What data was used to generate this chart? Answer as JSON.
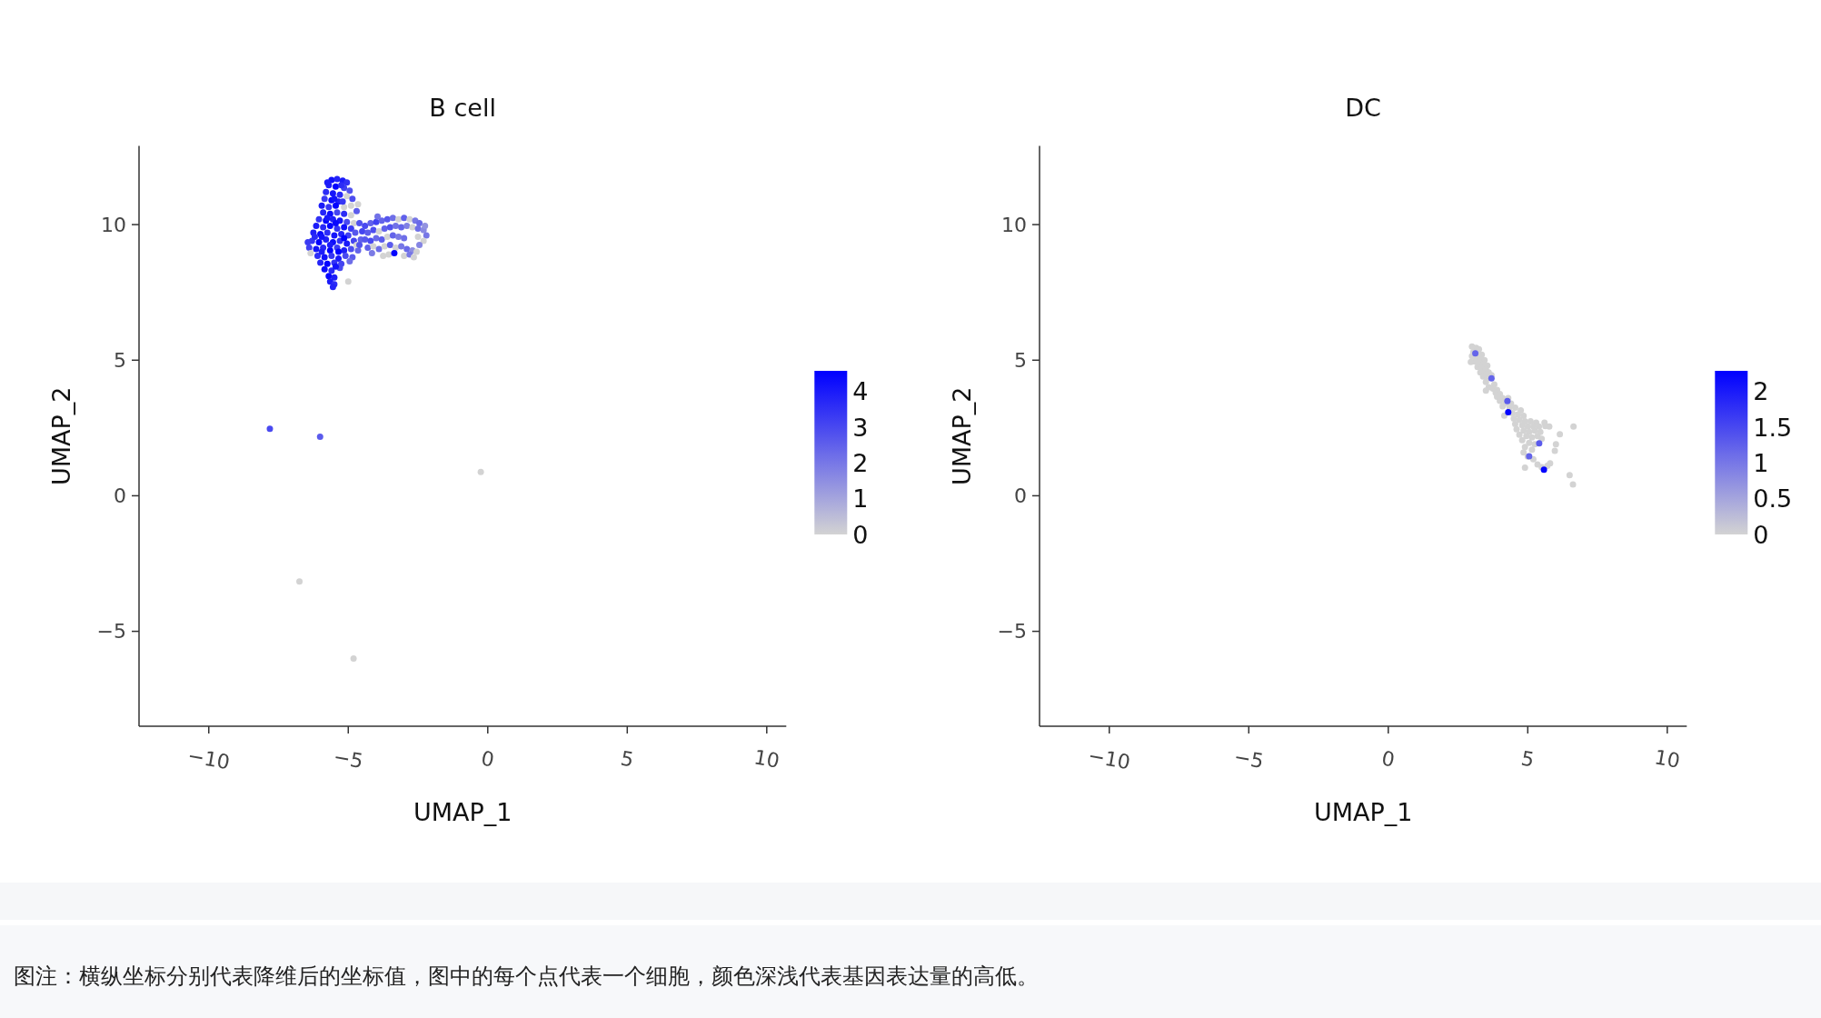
{
  "chart_data": [
    {
      "type": "scatter",
      "title": "B cell",
      "xlabel": "UMAP_1",
      "ylabel": "UMAP_2",
      "marker": "circle",
      "x": [
        -5.6,
        -5.4,
        -5.2,
        -5.05,
        -5.7,
        -5.45,
        -5.15,
        -4.95,
        -5.8,
        -5.55,
        -5.3,
        -5.05,
        -5.85,
        -5.6,
        -5.35,
        -4.85,
        -5.95,
        -5.7,
        -5.45,
        -5.15,
        -4.9,
        -4.65,
        -5.9,
        -5.65,
        -5.4,
        -5.15,
        -4.9,
        -4.7,
        -6.05,
        -5.8,
        -5.55,
        -5.3,
        -5.05,
        -4.8,
        -6.15,
        -5.9,
        -5.65,
        -5.4,
        -5.15,
        -4.9,
        -6.25,
        -6.0,
        -5.75,
        -5.5,
        -5.25,
        -5.0,
        -4.75,
        -6.3,
        -6.05,
        -5.8,
        -5.55,
        -5.3,
        -5.05,
        -4.8,
        -4.55,
        -6.4,
        -6.15,
        -5.9,
        -5.65,
        -5.4,
        -5.15,
        -4.9,
        -4.65,
        -6.35,
        -6.1,
        -5.85,
        -5.6,
        -5.35,
        -5.1,
        -4.85,
        -6.0,
        -5.75,
        -5.5,
        -5.25,
        -4.95,
        -5.85,
        -5.6,
        -5.3,
        -5.7,
        -5.5,
        -5.65,
        -5.5,
        -5.55,
        -5.0,
        -4.6,
        -4.4,
        -4.2,
        -4.0,
        -3.8,
        -3.6,
        -3.4,
        -3.2,
        -3.0,
        -2.8,
        -2.6,
        -2.45,
        -4.5,
        -4.3,
        -4.1,
        -3.9,
        -3.7,
        -3.5,
        -3.3,
        -3.1,
        -2.9,
        -2.7,
        -2.5,
        -2.3,
        -2.2,
        -4.4,
        -4.2,
        -4.0,
        -3.8,
        -3.6,
        -3.4,
        -3.2,
        -3.0,
        -2.3,
        -2.45,
        -4.3,
        -4.1,
        -3.9,
        -3.7,
        -3.5,
        -3.3,
        -3.1,
        -2.9,
        -2.7,
        -2.55,
        -3.75,
        -3.55,
        -3.35,
        -3.0,
        -2.8,
        -2.65,
        -4.7,
        -4.15,
        -2.25,
        -2.5,
        -3.95,
        -7.81,
        -6.01,
        -0.25,
        -6.75,
        -4.81,
        -5.75,
        -5.25,
        -5.5,
        -5.2,
        -5.75,
        -5.45,
        -5.95,
        -5.65,
        -5.35,
        -5.95,
        -6.2,
        -4.6,
        -5.45,
        -5.15,
        -6.45
      ],
      "values": [
        11.65,
        11.68,
        11.62,
        11.55,
        11.45,
        11.4,
        11.35,
        11.25,
        11.2,
        11.15,
        11.1,
        11.05,
        10.95,
        10.9,
        10.85,
        10.95,
        10.7,
        10.65,
        10.7,
        10.65,
        10.7,
        10.75,
        10.45,
        10.4,
        10.45,
        10.4,
        10.35,
        10.5,
        10.2,
        10.15,
        10.2,
        10.15,
        10.1,
        10.05,
        9.95,
        9.9,
        9.95,
        9.85,
        9.9,
        9.85,
        9.7,
        9.65,
        9.7,
        9.6,
        9.65,
        9.6,
        9.7,
        9.4,
        9.35,
        9.45,
        9.35,
        9.4,
        9.3,
        9.4,
        9.45,
        9.15,
        9.1,
        9.15,
        9.05,
        9.15,
        9.05,
        9.1,
        9.05,
        8.95,
        8.85,
        8.8,
        8.85,
        8.75,
        8.85,
        8.8,
        8.6,
        8.55,
        8.6,
        8.55,
        8.65,
        8.35,
        8.3,
        8.4,
        8.1,
        8.05,
        7.9,
        7.8,
        7.7,
        7.9,
        10.05,
        9.95,
        10.05,
        10.1,
        10.15,
        10.2,
        10.25,
        10.2,
        10.25,
        10.2,
        10.15,
        10.05,
        9.75,
        9.7,
        9.8,
        9.75,
        9.85,
        9.9,
        9.95,
        9.9,
        9.95,
        9.9,
        9.85,
        9.8,
        9.6,
        9.45,
        9.4,
        9.5,
        9.45,
        9.55,
        9.6,
        9.55,
        9.5,
        9.4,
        9.25,
        9.15,
        9.2,
        9.1,
        9.2,
        9.25,
        9.15,
        9.2,
        9.1,
        9.05,
        9.0,
        8.85,
        8.9,
        8.95,
        8.85,
        8.9,
        8.8,
        9.25,
        8.95,
        9.95,
        9.55,
        10.3,
        2.47,
        2.18,
        0.88,
        -3.16,
        -6.0,
        11.55,
        11.45,
        10.95,
        10.85,
        10.25,
        10.05,
        9.55,
        9.25,
        9.0,
        9.0,
        9.55,
        9.25,
        8.45,
        9.5,
        9.35
      ],
      "cvalues": [
        4.2,
        3.8,
        4.0,
        3.5,
        3.9,
        4.5,
        3.2,
        2.8,
        3.6,
        4.1,
        3.7,
        0,
        3.3,
        4.4,
        3.9,
        2.9,
        4.0,
        3.4,
        4.5,
        0,
        0,
        0,
        3.8,
        4.3,
        3.1,
        3.6,
        0,
        2.6,
        3.5,
        4.5,
        3.9,
        4.1,
        3.0,
        0,
        4.0,
        3.7,
        4.5,
        3.5,
        4.2,
        3.3,
        3.9,
        4.4,
        3.6,
        4.1,
        3.8,
        3.2,
        2.7,
        3.4,
        4.5,
        3.9,
        4.3,
        3.5,
        4.0,
        3.1,
        2.5,
        3.2,
        4.1,
        3.7,
        4.5,
        3.3,
        3.9,
        2.9,
        2.4,
        0,
        3.6,
        4.2,
        3.4,
        4.0,
        3.0,
        2.6,
        3.8,
        4.5,
        3.5,
        3.1,
        2.2,
        4.3,
        3.7,
        3.0,
        4.4,
        3.9,
        4.0,
        3.6,
        3.8,
        0,
        2.8,
        3.0,
        2.5,
        3.2,
        2.4,
        2.7,
        2.2,
        0,
        2.5,
        0,
        2.0,
        2.3,
        3.1,
        2.6,
        2.9,
        0,
        2.5,
        2.8,
        2.1,
        2.4,
        1.8,
        0,
        2.2,
        1.6,
        2.0,
        2.7,
        3.0,
        2.3,
        2.6,
        0,
        2.4,
        1.9,
        2.2,
        0,
        1.7,
        2.5,
        0,
        2.2,
        0,
        2.6,
        0,
        2.0,
        2.3,
        1.5,
        0,
        0,
        0,
        4.5,
        0,
        2.0,
        0,
        0,
        1.9,
        1.4,
        0,
        2.1,
        3.0,
        2.6,
        0,
        0,
        0,
        4.0,
        3.6,
        4.2,
        3.4,
        4.1,
        4.4,
        4.2,
        4.0,
        4.5,
        3.9,
        3.7,
        2.8,
        4.2,
        4.5,
        3.3
      ],
      "clim": [
        0,
        4.58
      ],
      "cticks": [
        0,
        1,
        2,
        3,
        4
      ],
      "xlim": [
        -12.5,
        10.7
      ],
      "xticks": [
        -10,
        -5,
        0,
        5,
        10
      ],
      "ylim": [
        -8.5,
        12.9
      ],
      "yticks": [
        -5,
        0,
        5,
        10
      ]
    },
    {
      "type": "scatter",
      "title": "DC",
      "xlabel": "UMAP_1",
      "ylabel": "UMAP_2",
      "marker": "circle",
      "x": [
        3.0,
        3.15,
        3.25,
        3.05,
        3.2,
        3.35,
        3.0,
        3.15,
        3.3,
        3.45,
        3.1,
        2.96,
        3.25,
        3.4,
        3.55,
        3.2,
        3.35,
        3.5,
        3.3,
        3.45,
        3.6,
        3.7,
        3.4,
        3.55,
        3.5,
        3.8,
        3.6,
        3.75,
        3.9,
        3.5,
        3.85,
        4.0,
        3.9,
        4.1,
        4.3,
        4.0,
        4.2,
        4.4,
        4.1,
        4.35,
        4.55,
        4.75,
        4.16,
        4.45,
        4.65,
        4.85,
        4.5,
        4.7,
        4.9,
        5.1,
        5.3,
        4.55,
        4.8,
        5.0,
        5.2,
        5.4,
        5.77,
        5.63,
        4.6,
        4.85,
        5.05,
        5.25,
        5.45,
        4.7,
        4.95,
        5.15,
        5.35,
        5.5,
        4.8,
        5.05,
        5.25,
        4.9,
        5.15,
        4.85,
        5.0,
        5.2,
        4.9,
        5.35,
        5.5,
        5.7,
        5.8,
        6.64,
        6.15,
        6.01,
        5.97,
        6.5,
        6.62,
        5.6,
        3.12,
        3.7,
        4.27,
        4.3,
        5.41,
        5.05,
        5.58
      ],
      "values": [
        5.5,
        5.45,
        5.4,
        5.3,
        5.25,
        5.2,
        5.15,
        5.1,
        5.05,
        5.0,
        4.95,
        4.93,
        4.9,
        4.85,
        4.8,
        4.75,
        4.7,
        4.65,
        4.55,
        4.5,
        4.55,
        4.45,
        4.4,
        4.35,
        4.2,
        4.1,
        4.0,
        3.95,
        3.9,
        3.88,
        3.8,
        3.75,
        3.65,
        3.6,
        3.6,
        3.5,
        3.4,
        3.4,
        3.3,
        3.25,
        3.25,
        3.15,
        2.96,
        3.05,
        3.0,
        2.95,
        2.85,
        2.8,
        2.75,
        2.75,
        2.7,
        2.65,
        2.6,
        2.55,
        2.55,
        2.55,
        2.55,
        2.57,
        2.45,
        2.4,
        2.35,
        2.4,
        2.35,
        2.25,
        2.2,
        2.15,
        2.2,
        2.1,
        2.05,
        1.95,
        1.9,
        1.8,
        1.7,
        1.6,
        1.45,
        1.35,
        1.04,
        1.15,
        1.05,
        1.1,
        1.2,
        2.55,
        2.27,
        1.9,
        1.66,
        0.76,
        0.42,
        2.7,
        5.25,
        4.33,
        3.49,
        3.08,
        1.93,
        1.46,
        0.96
      ],
      "cvalues": [
        0,
        0,
        0,
        0,
        0,
        0,
        0,
        0,
        0,
        0,
        0,
        0,
        0,
        0,
        0,
        0,
        0,
        0,
        0,
        0,
        0,
        0,
        0,
        0,
        0,
        0,
        0,
        0,
        0,
        0,
        0,
        0,
        0,
        0,
        0,
        0,
        0,
        0,
        0,
        0,
        0,
        0,
        0,
        0,
        0,
        0,
        0,
        0,
        0,
        0,
        0,
        0,
        0,
        0,
        0,
        0,
        0,
        0,
        0,
        0,
        0,
        0,
        0,
        0,
        0,
        0,
        0,
        0,
        0,
        0,
        0,
        0,
        0,
        0,
        0,
        0,
        0,
        0,
        0,
        0,
        0,
        0,
        0,
        0,
        0,
        0,
        0,
        0,
        1.2,
        1.2,
        1.3,
        2.25,
        1.3,
        1.2,
        2.25
      ],
      "clim": [
        0,
        2.29
      ],
      "cticks": [
        0,
        0.5,
        1,
        1.5,
        2
      ],
      "xlim": [
        -12.5,
        10.7
      ],
      "xticks": [
        -10,
        -5,
        0,
        5,
        10
      ],
      "ylim": [
        -8.5,
        12.9
      ],
      "yticks": [
        -5,
        0,
        5,
        10
      ]
    },
    {
      "type": "other",
      "annotations": [
        "图注：横纵坐标分别代表降维后的坐标值，图中的每个点代表一个细胞，颜色深浅代表基因表达量的高低。"
      ]
    }
  ]
}
